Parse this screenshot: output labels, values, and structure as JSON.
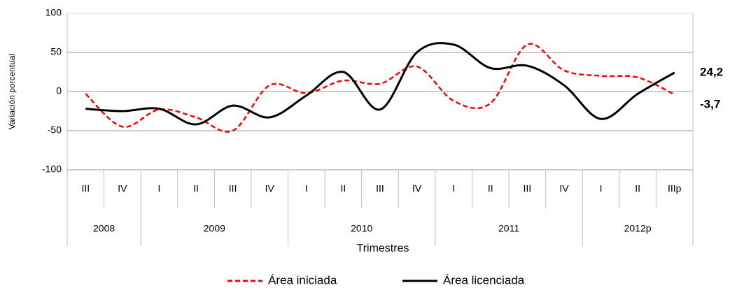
{
  "chart_data": {
    "type": "line",
    "y_label": "Variación porcentual",
    "x_label": "Trimestres",
    "categories": [
      "III",
      "IV",
      "I",
      "II",
      "III",
      "IV",
      "I",
      "II",
      "III",
      "IV",
      "I",
      "II",
      "III",
      "IV",
      "I",
      "II",
      "IIIp"
    ],
    "groups": [
      {
        "name": "2008",
        "count": 2
      },
      {
        "name": "2009",
        "count": 4
      },
      {
        "name": "2010",
        "count": 4
      },
      {
        "name": "2011",
        "count": 4
      },
      {
        "name": "2012p",
        "count": 3
      }
    ],
    "series": [
      {
        "name": "Área iniciada",
        "color": "#ff0000",
        "dashed": true,
        "values": [
          -3,
          -45,
          -23,
          -33,
          -50,
          8,
          -2,
          14,
          10,
          32,
          -12,
          -15,
          60,
          27,
          20,
          18,
          -3.7
        ],
        "value_labels": [
          null,
          null,
          null,
          null,
          null,
          null,
          null,
          null,
          null,
          null,
          null,
          null,
          null,
          null,
          null,
          null,
          "-3,7"
        ]
      },
      {
        "name": "Área licenciada",
        "color": "#000000",
        "dashed": false,
        "values": [
          -22,
          -25,
          -22,
          -42,
          -18,
          -33,
          -5,
          25,
          -23,
          50,
          60,
          30,
          33,
          8,
          -35,
          -3,
          24.2
        ],
        "value_labels": [
          null,
          null,
          null,
          null,
          null,
          null,
          null,
          null,
          null,
          null,
          null,
          null,
          null,
          null,
          null,
          null,
          "24,2"
        ]
      }
    ],
    "ylim": [
      -100,
      100
    ],
    "yticks": [
      -100,
      -50,
      0,
      50,
      100
    ],
    "grid": true,
    "legend": "bottom"
  }
}
